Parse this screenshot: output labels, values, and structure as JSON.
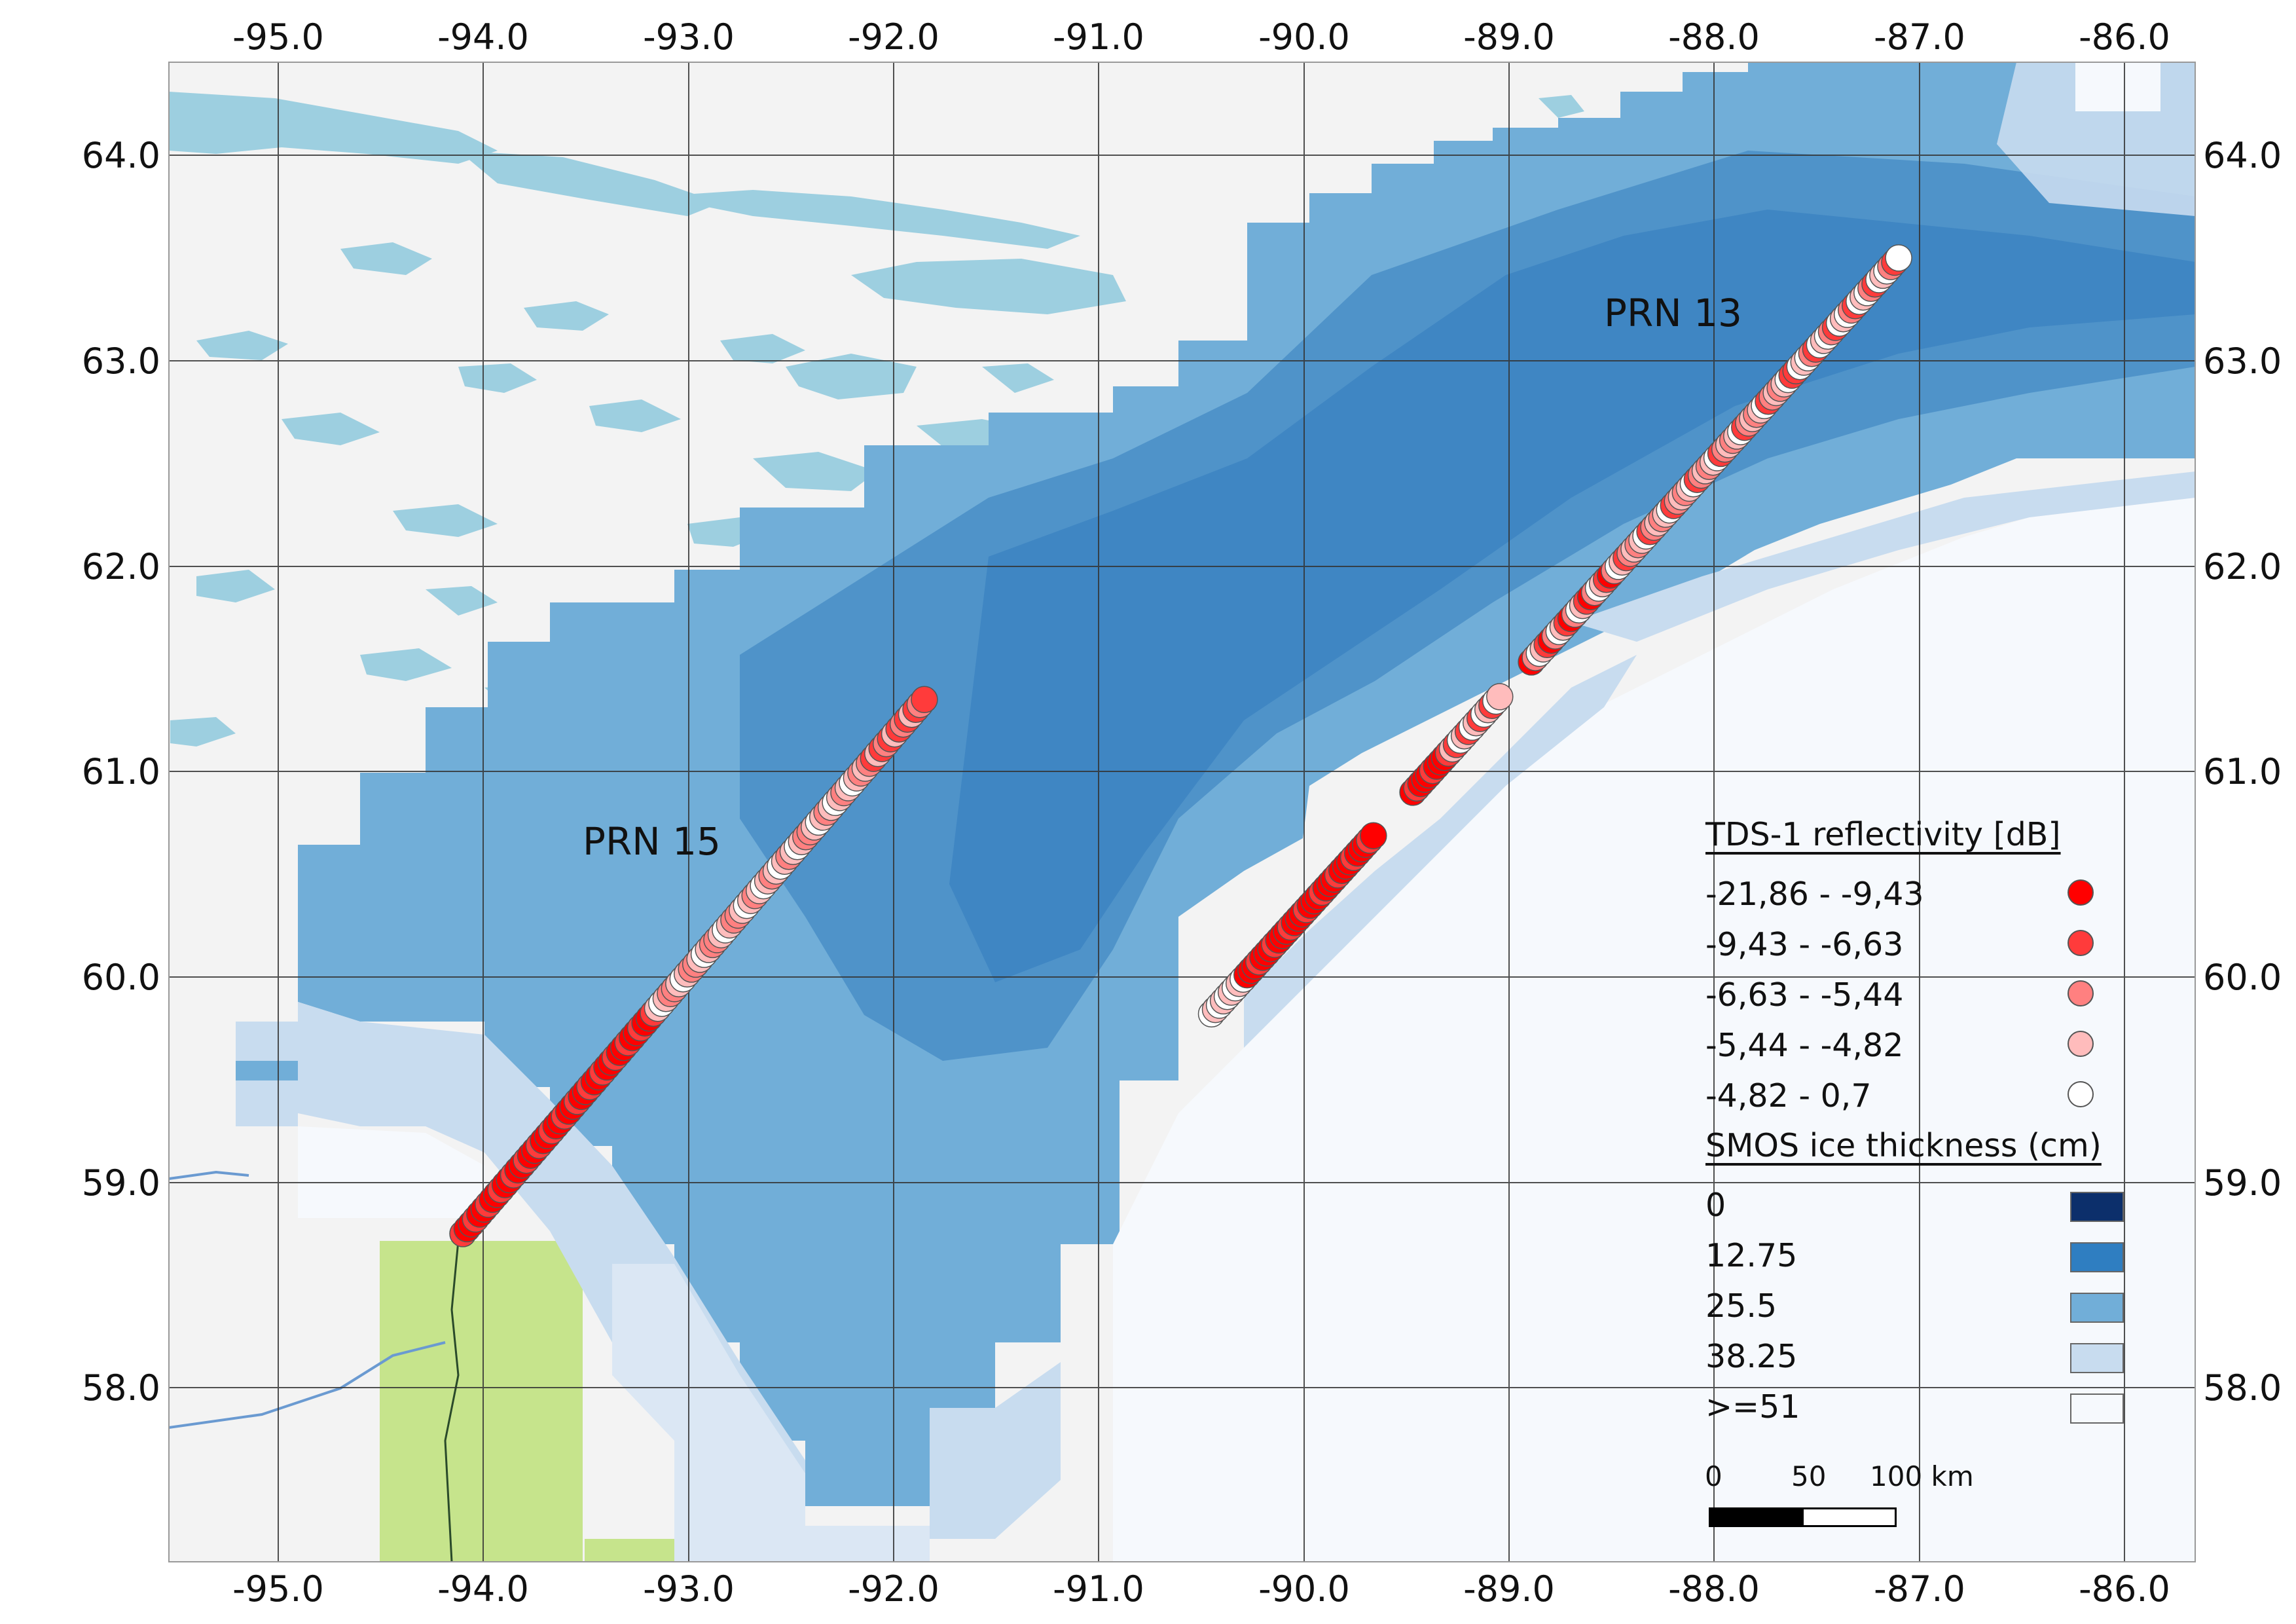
{
  "map": {
    "lon_ticks": [
      "-95.0",
      "-94.0",
      "-93.0",
      "-92.0",
      "-91.0",
      "-90.0",
      "-89.0",
      "-88.0",
      "-87.0",
      "-86.0"
    ],
    "lat_ticks": [
      "64.0",
      "63.0",
      "62.0",
      "61.0",
      "60.0",
      "59.0",
      "58.0"
    ],
    "colors": {
      "land": "#f3f3f3",
      "lakes": "#9dcfe0",
      "ice_0": "#0c2f6b",
      "ice_12_75": "#2f7ec1",
      "ice_25_5": "#71aed8",
      "ice_38_25": "#c8dcef",
      "ice_51": "#f6f9fd",
      "grid": "#333333"
    }
  },
  "annotations": {
    "prn15": "PRN 15",
    "prn13": "PRN 13"
  },
  "tracks": [
    {
      "label": "PRN 15",
      "start": {
        "lon": -94.1,
        "lat": 58.75
      },
      "end": {
        "lon": -91.85,
        "lat": 61.35
      }
    },
    {
      "label": "PRN 13",
      "start": {
        "lon": -90.45,
        "lat": 59.82
      },
      "end": {
        "lon": -87.1,
        "lat": 63.5
      }
    }
  ],
  "legend": {
    "reflectivity_title": "TDS-1 reflectivity [dB]",
    "reflectivity_classes": [
      {
        "label": "-21,86 - -9,43",
        "color": "#ff0000"
      },
      {
        "label": "-9,43 - -6,63",
        "color": "#ff3b3b"
      },
      {
        "label": "-6,63 - -5,44",
        "color": "#ff8080"
      },
      {
        "label": "-5,44 - -4,82",
        "color": "#ffbcbc"
      },
      {
        "label": "-4,82 - 0,7",
        "color": "#ffffff"
      }
    ],
    "ice_title": "SMOS ice thickness (cm)",
    "ice_classes": [
      {
        "label": "0",
        "color": "#0c2f6b"
      },
      {
        "label": "12.75",
        "color": "#2f7ec1"
      },
      {
        "label": "25.5",
        "color": "#71aed8"
      },
      {
        "label": "38.25",
        "color": "#c8dcef"
      },
      {
        "label": ">=51",
        "color": "#f6f9fd"
      }
    ]
  },
  "scalebar": {
    "labels": [
      "0",
      "50",
      "100 km"
    ]
  }
}
